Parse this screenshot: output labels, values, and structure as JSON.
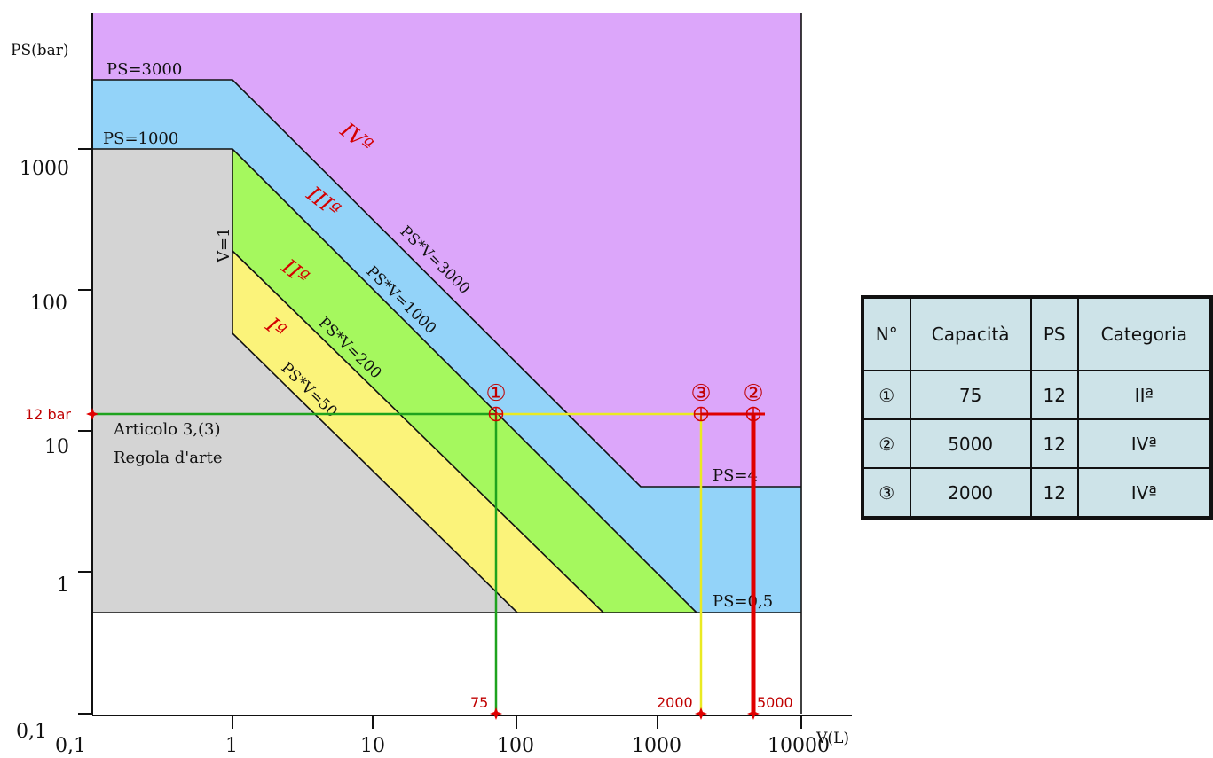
{
  "axes": {
    "y_title": "PS(bar)",
    "x_title": "V(L)",
    "y_ticks": [
      "1000",
      "100",
      "10",
      "1"
    ],
    "x_ticks": [
      "0,1",
      "1",
      "10",
      "100",
      "1000",
      "10000"
    ],
    "origin_y": "0,1",
    "origin_x": "0,1"
  },
  "boundaries": {
    "ps_3000": "PS=3000",
    "ps_1000": "PS=1000",
    "v_1": "V=1",
    "ps_4": "PS=4",
    "ps_05": "PS=0,5",
    "psv_3000": "PS*V=3000",
    "psv_1000": "PS*V=1000",
    "psv_200": "PS*V=200",
    "psv_50": "PS*V=50"
  },
  "categories": {
    "cat_1": "Iª",
    "cat_2": "IIª",
    "cat_3": "IIIª",
    "cat_4": "IVª"
  },
  "note": {
    "line1": "Articolo 3,(3)",
    "line2": "Regola d'arte"
  },
  "markers": {
    "pressure": "12 bar",
    "v1": "75",
    "v2": "2000",
    "v3": "5000",
    "point_1": "①",
    "point_2": "②",
    "point_3": "③"
  },
  "colors": {
    "cat_4": "#dca6fa",
    "cat_3": "#93d3f9",
    "cat_2": "#a5f85e",
    "cat_1": "#fbf37a",
    "art3": "#d4d4d4",
    "marker_red": "#e00000",
    "line_green": "#1ea31e",
    "line_yellow": "#eaea22"
  },
  "table": {
    "headers": [
      "N°",
      "Capacità",
      "PS",
      "Categoria"
    ],
    "rows": [
      [
        "①",
        "75",
        "12",
        "IIª"
      ],
      [
        "②",
        "5000",
        "12",
        "IVª"
      ],
      [
        "③",
        "2000",
        "12",
        "IVª"
      ]
    ]
  }
}
